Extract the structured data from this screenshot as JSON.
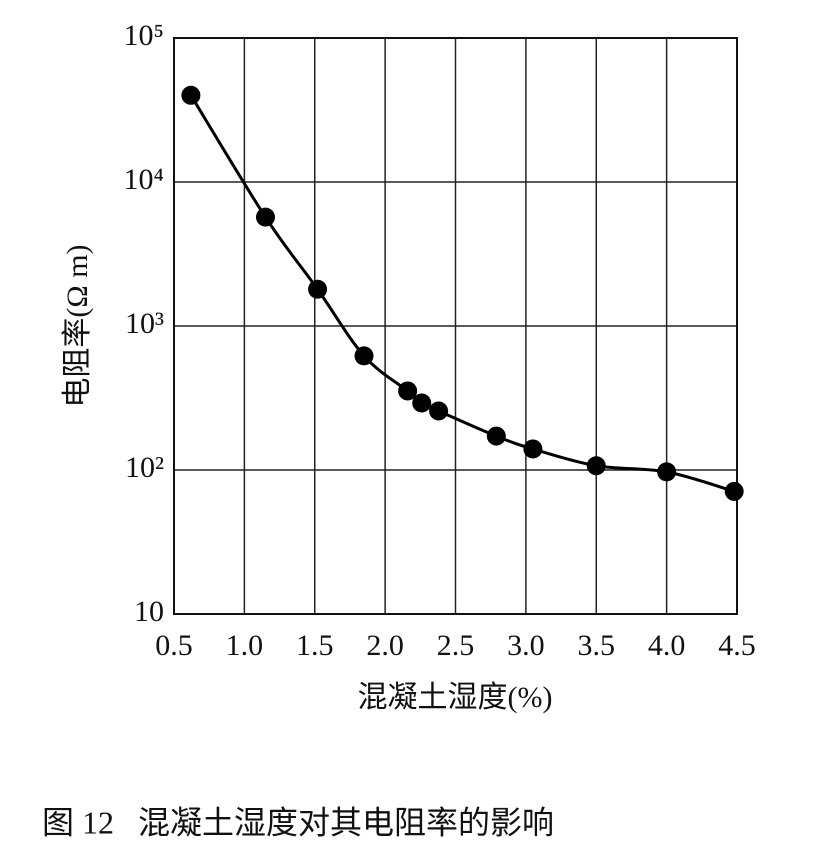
{
  "chart_data": {
    "type": "line",
    "x_label": "混凝土湿度(%)",
    "y_label": "电阻率(Ω m)",
    "caption": "图 12   混凝土湿度对其电阻率的影响",
    "x": [
      0.62,
      1.15,
      1.52,
      1.85,
      2.16,
      2.26,
      2.38,
      2.79,
      3.05,
      3.5,
      4.0,
      4.48
    ],
    "values": [
      40000,
      5700,
      1800,
      620,
      354,
      292,
      257,
      172,
      140,
      107,
      97,
      71
    ],
    "color": "#000000",
    "xlim": [
      0.5,
      4.5
    ],
    "xticks": [
      0.5,
      {
        "value": 1,
        "label": "1.0"
      },
      1.5,
      {
        "value": 2,
        "label": "2.0"
      },
      2.5,
      {
        "value": 3,
        "label": "3.0"
      },
      3.5,
      {
        "value": 4,
        "label": "4.0"
      },
      4.5
    ],
    "ylim": [
      10,
      100000
    ],
    "yticks": [
      10,
      {
        "value": 100,
        "label": "10²"
      },
      {
        "value": 1000,
        "label": "10³"
      },
      {
        "value": 10000,
        "label": "10⁴"
      },
      {
        "value": 100000,
        "label": "10⁵"
      }
    ],
    "log_y": true,
    "grid": true
  }
}
